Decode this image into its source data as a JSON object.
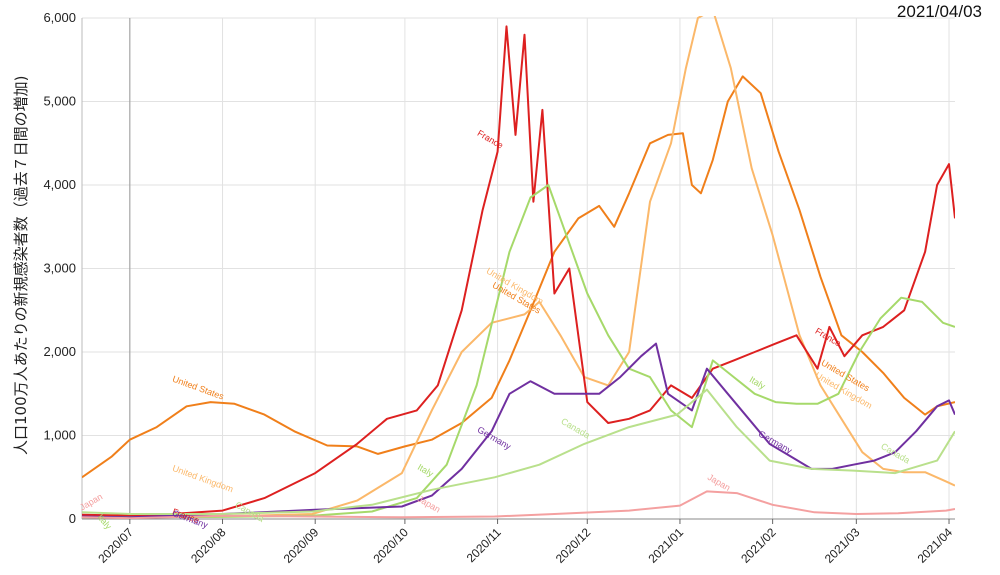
{
  "date_stamp": "2021/04/03",
  "chart_data": {
    "type": "line",
    "title": "",
    "ylabel": "人口100万人あたりの新規感染者数（過去７日間の増加)",
    "xlabel": "",
    "ylim": [
      0,
      6000
    ],
    "y_ticks": [
      0,
      1000,
      2000,
      3000,
      4000,
      5000,
      6000
    ],
    "y_tick_labels": [
      "0",
      "1,000",
      "2,000",
      "3,000",
      "4,000",
      "5,000",
      "6,000"
    ],
    "x_tick_labels": [
      "2020/07",
      "2020/08",
      "2020/09",
      "2020/10",
      "2020/11",
      "2020/12",
      "2021/01",
      "2021/02",
      "2021/03",
      "2021/04"
    ],
    "x_range": [
      "2020-06-15",
      "2021-04-03"
    ],
    "grid": true,
    "series": [
      {
        "name": "United States",
        "color": "#f07f1a",
        "points": [
          [
            "2020-06-15",
            500
          ],
          [
            "2020-06-25",
            750
          ],
          [
            "2020-07-01",
            950
          ],
          [
            "2020-07-10",
            1100
          ],
          [
            "2020-07-20",
            1350
          ],
          [
            "2020-07-28",
            1400
          ],
          [
            "2020-08-05",
            1380
          ],
          [
            "2020-08-15",
            1250
          ],
          [
            "2020-08-25",
            1050
          ],
          [
            "2020-09-05",
            880
          ],
          [
            "2020-09-15",
            870
          ],
          [
            "2020-09-22",
            780
          ],
          [
            "2020-10-01",
            870
          ],
          [
            "2020-10-10",
            950
          ],
          [
            "2020-10-20",
            1150
          ],
          [
            "2020-10-30",
            1450
          ],
          [
            "2020-11-05",
            1900
          ],
          [
            "2020-11-12",
            2500
          ],
          [
            "2020-11-20",
            3200
          ],
          [
            "2020-11-28",
            3600
          ],
          [
            "2020-12-05",
            3750
          ],
          [
            "2020-12-10",
            3500
          ],
          [
            "2020-12-15",
            3900
          ],
          [
            "2020-12-22",
            4500
          ],
          [
            "2020-12-28",
            4600
          ],
          [
            "2021-01-02",
            4620
          ],
          [
            "2021-01-05",
            4000
          ],
          [
            "2021-01-08",
            3900
          ],
          [
            "2021-01-12",
            4300
          ],
          [
            "2021-01-17",
            5000
          ],
          [
            "2021-01-22",
            5300
          ],
          [
            "2021-01-28",
            5100
          ],
          [
            "2021-02-03",
            4400
          ],
          [
            "2021-02-10",
            3700
          ],
          [
            "2021-02-17",
            2900
          ],
          [
            "2021-02-24",
            2200
          ],
          [
            "2021-03-03",
            2000
          ],
          [
            "2021-03-10",
            1750
          ],
          [
            "2021-03-17",
            1450
          ],
          [
            "2021-03-24",
            1250
          ],
          [
            "2021-03-28",
            1350
          ],
          [
            "2021-04-03",
            1400
          ]
        ],
        "label_at": [
          "2020-07-15",
          1650,
          20
        ]
      },
      {
        "name": "United Kingdom",
        "color": "#fbb86a",
        "points": [
          [
            "2020-06-15",
            40
          ],
          [
            "2020-07-01",
            50
          ],
          [
            "2020-07-20",
            30
          ],
          [
            "2020-08-10",
            40
          ],
          [
            "2020-08-31",
            60
          ],
          [
            "2020-09-15",
            220
          ],
          [
            "2020-09-30",
            550
          ],
          [
            "2020-10-10",
            1300
          ],
          [
            "2020-10-20",
            2000
          ],
          [
            "2020-10-30",
            2350
          ],
          [
            "2020-11-10",
            2450
          ],
          [
            "2020-11-15",
            2600
          ],
          [
            "2020-11-22",
            2200
          ],
          [
            "2020-11-30",
            1700
          ],
          [
            "2020-12-08",
            1600
          ],
          [
            "2020-12-15",
            2000
          ],
          [
            "2020-12-22",
            3800
          ],
          [
            "2020-12-29",
            4500
          ],
          [
            "2021-01-03",
            5400
          ],
          [
            "2021-01-07",
            6000
          ],
          [
            "2021-01-12",
            6100
          ],
          [
            "2021-01-18",
            5400
          ],
          [
            "2021-01-25",
            4200
          ],
          [
            "2021-02-01",
            3400
          ],
          [
            "2021-02-10",
            2200
          ],
          [
            "2021-02-17",
            1600
          ],
          [
            "2021-02-24",
            1200
          ],
          [
            "2021-03-03",
            800
          ],
          [
            "2021-03-10",
            600
          ],
          [
            "2021-03-17",
            560
          ],
          [
            "2021-03-24",
            560
          ],
          [
            "2021-03-31",
            450
          ],
          [
            "2021-04-03",
            400
          ]
        ],
        "label_at": [
          "2020-07-15",
          580,
          20
        ]
      },
      {
        "name": "France",
        "color": "#dd2020",
        "points": [
          [
            "2020-06-15",
            50
          ],
          [
            "2020-07-01",
            40
          ],
          [
            "2020-07-15",
            60
          ],
          [
            "2020-08-01",
            100
          ],
          [
            "2020-08-15",
            250
          ],
          [
            "2020-09-01",
            550
          ],
          [
            "2020-09-15",
            900
          ],
          [
            "2020-09-25",
            1200
          ],
          [
            "2020-10-05",
            1300
          ],
          [
            "2020-10-12",
            1600
          ],
          [
            "2020-10-20",
            2500
          ],
          [
            "2020-10-27",
            3700
          ],
          [
            "2020-11-01",
            4400
          ],
          [
            "2020-11-04",
            5900
          ],
          [
            "2020-11-07",
            4600
          ],
          [
            "2020-11-10",
            5800
          ],
          [
            "2020-11-13",
            3800
          ],
          [
            "2020-11-16",
            4900
          ],
          [
            "2020-11-20",
            2700
          ],
          [
            "2020-11-25",
            3000
          ],
          [
            "2020-12-01",
            1400
          ],
          [
            "2020-12-08",
            1150
          ],
          [
            "2020-12-15",
            1200
          ],
          [
            "2020-12-22",
            1300
          ],
          [
            "2020-12-29",
            1600
          ],
          [
            "2021-01-05",
            1450
          ],
          [
            "2021-01-12",
            1800
          ],
          [
            "2021-01-19",
            1900
          ],
          [
            "2021-01-26",
            2000
          ],
          [
            "2021-02-02",
            2100
          ],
          [
            "2021-02-09",
            2200
          ],
          [
            "2021-02-16",
            1800
          ],
          [
            "2021-02-20",
            2300
          ],
          [
            "2021-02-25",
            1950
          ],
          [
            "2021-03-03",
            2200
          ],
          [
            "2021-03-10",
            2300
          ],
          [
            "2021-03-17",
            2500
          ],
          [
            "2021-03-24",
            3200
          ],
          [
            "2021-03-28",
            4000
          ],
          [
            "2021-04-01",
            4250
          ],
          [
            "2021-04-03",
            3600
          ]
        ],
        "label_at": [
          "2020-07-15",
          60,
          20
        ]
      },
      {
        "name": "Italy",
        "color": "#a6d96a",
        "points": [
          [
            "2020-06-15",
            20
          ],
          [
            "2020-07-01",
            20
          ],
          [
            "2020-08-01",
            25
          ],
          [
            "2020-08-31",
            40
          ],
          [
            "2020-09-20",
            90
          ],
          [
            "2020-10-05",
            250
          ],
          [
            "2020-10-15",
            650
          ],
          [
            "2020-10-25",
            1600
          ],
          [
            "2020-11-05",
            3200
          ],
          [
            "2020-11-12",
            3850
          ],
          [
            "2020-11-18",
            4000
          ],
          [
            "2020-11-24",
            3400
          ],
          [
            "2020-12-01",
            2700
          ],
          [
            "2020-12-08",
            2200
          ],
          [
            "2020-12-15",
            1800
          ],
          [
            "2020-12-22",
            1700
          ],
          [
            "2020-12-29",
            1300
          ],
          [
            "2021-01-05",
            1100
          ],
          [
            "2021-01-12",
            1900
          ],
          [
            "2021-01-19",
            1700
          ],
          [
            "2021-01-26",
            1500
          ],
          [
            "2021-02-02",
            1400
          ],
          [
            "2021-02-09",
            1380
          ],
          [
            "2021-02-16",
            1380
          ],
          [
            "2021-02-23",
            1500
          ],
          [
            "2021-03-02",
            2000
          ],
          [
            "2021-03-09",
            2400
          ],
          [
            "2021-03-16",
            2650
          ],
          [
            "2021-03-23",
            2600
          ],
          [
            "2021-03-30",
            2350
          ],
          [
            "2021-04-03",
            2300
          ]
        ],
        "label_at": [
          "2020-06-20",
          20,
          50
        ]
      },
      {
        "name": "Germany",
        "color": "#7030a0",
        "points": [
          [
            "2020-06-15",
            30
          ],
          [
            "2020-07-01",
            20
          ],
          [
            "2020-08-01",
            60
          ],
          [
            "2020-09-01",
            110
          ],
          [
            "2020-09-30",
            150
          ],
          [
            "2020-10-10",
            280
          ],
          [
            "2020-10-20",
            600
          ],
          [
            "2020-10-30",
            1050
          ],
          [
            "2020-11-05",
            1500
          ],
          [
            "2020-11-12",
            1650
          ],
          [
            "2020-11-20",
            1500
          ],
          [
            "2020-11-28",
            1500
          ],
          [
            "2020-12-05",
            1500
          ],
          [
            "2020-12-12",
            1700
          ],
          [
            "2020-12-19",
            1950
          ],
          [
            "2020-12-24",
            2100
          ],
          [
            "2020-12-28",
            1500
          ],
          [
            "2021-01-05",
            1300
          ],
          [
            "2021-01-10",
            1800
          ],
          [
            "2021-01-17",
            1500
          ],
          [
            "2021-01-24",
            1200
          ],
          [
            "2021-01-31",
            900
          ],
          [
            "2021-02-07",
            750
          ],
          [
            "2021-02-14",
            600
          ],
          [
            "2021-02-21",
            600
          ],
          [
            "2021-02-28",
            650
          ],
          [
            "2021-03-07",
            700
          ],
          [
            "2021-03-14",
            800
          ],
          [
            "2021-03-21",
            1050
          ],
          [
            "2021-03-28",
            1350
          ],
          [
            "2021-04-01",
            1420
          ],
          [
            "2021-04-03",
            1250
          ]
        ],
        "label_at": [
          "2020-07-15",
          40,
          20
        ]
      },
      {
        "name": "Canada",
        "color": "#b9e08c",
        "points": [
          [
            "2020-06-15",
            80
          ],
          [
            "2020-07-01",
            60
          ],
          [
            "2020-08-01",
            60
          ],
          [
            "2020-08-31",
            90
          ],
          [
            "2020-09-20",
            170
          ],
          [
            "2020-10-10",
            350
          ],
          [
            "2020-10-31",
            500
          ],
          [
            "2020-11-15",
            650
          ],
          [
            "2020-11-30",
            900
          ],
          [
            "2020-12-15",
            1100
          ],
          [
            "2020-12-31",
            1250
          ],
          [
            "2021-01-10",
            1550
          ],
          [
            "2021-01-20",
            1100
          ],
          [
            "2021-01-31",
            700
          ],
          [
            "2021-02-14",
            600
          ],
          [
            "2021-02-28",
            580
          ],
          [
            "2021-03-14",
            550
          ],
          [
            "2021-03-28",
            700
          ],
          [
            "2021-04-03",
            1050
          ]
        ],
        "label_at": [
          "2020-08-05",
          150,
          30
        ]
      },
      {
        "name": "Japan",
        "color": "#f4a0a0",
        "points": [
          [
            "2020-06-15",
            20
          ],
          [
            "2020-07-01",
            10
          ],
          [
            "2020-08-01",
            40
          ],
          [
            "2020-08-31",
            30
          ],
          [
            "2020-09-30",
            20
          ],
          [
            "2020-10-31",
            30
          ],
          [
            "2020-11-20",
            60
          ],
          [
            "2020-12-15",
            100
          ],
          [
            "2021-01-01",
            160
          ],
          [
            "2021-01-10",
            330
          ],
          [
            "2021-01-20",
            310
          ],
          [
            "2021-02-01",
            170
          ],
          [
            "2021-02-15",
            80
          ],
          [
            "2021-03-01",
            60
          ],
          [
            "2021-03-15",
            70
          ],
          [
            "2021-03-31",
            100
          ],
          [
            "2021-04-03",
            120
          ]
        ],
        "label_at": [
          "2020-06-15",
          100,
          -30
        ]
      }
    ],
    "annotations": [
      {
        "text": "France",
        "series": "France",
        "date": "2020-10-25",
        "value": 4600,
        "rotate": 30
      },
      {
        "text": "United Kingdom",
        "series": "United Kingdom",
        "date": "2020-10-28",
        "value": 2950,
        "rotate": 30
      },
      {
        "text": "United States",
        "series": "United States",
        "date": "2020-10-30",
        "value": 2780,
        "rotate": 30
      },
      {
        "text": "Italy",
        "series": "Italy",
        "date": "2020-10-05",
        "value": 600,
        "rotate": 30
      },
      {
        "text": "Germany",
        "series": "Germany",
        "date": "2020-10-25",
        "value": 1050,
        "rotate": 30
      },
      {
        "text": "Canada",
        "series": "Canada",
        "date": "2020-11-22",
        "value": 1150,
        "rotate": 30
      },
      {
        "text": "Japan",
        "series": "Japan",
        "date": "2020-10-05",
        "value": 220,
        "rotate": 30
      },
      {
        "text": "Japan",
        "series": "Japan",
        "date": "2021-01-10",
        "value": 480,
        "rotate": 30
      },
      {
        "text": "Italy",
        "series": "Italy",
        "date": "2021-01-24",
        "value": 1650,
        "rotate": 30
      },
      {
        "text": "Germany",
        "series": "Germany",
        "date": "2021-01-27",
        "value": 1000,
        "rotate": 30
      },
      {
        "text": "France",
        "series": "France",
        "date": "2021-02-15",
        "value": 2230,
        "rotate": 30
      },
      {
        "text": "United States",
        "series": "United States",
        "date": "2021-02-17",
        "value": 1850,
        "rotate": 30
      },
      {
        "text": "United Kingdom",
        "series": "United Kingdom",
        "date": "2021-02-15",
        "value": 1700,
        "rotate": 30
      },
      {
        "text": "Canada",
        "series": "Canada",
        "date": "2021-03-09",
        "value": 850,
        "rotate": 30
      }
    ]
  }
}
